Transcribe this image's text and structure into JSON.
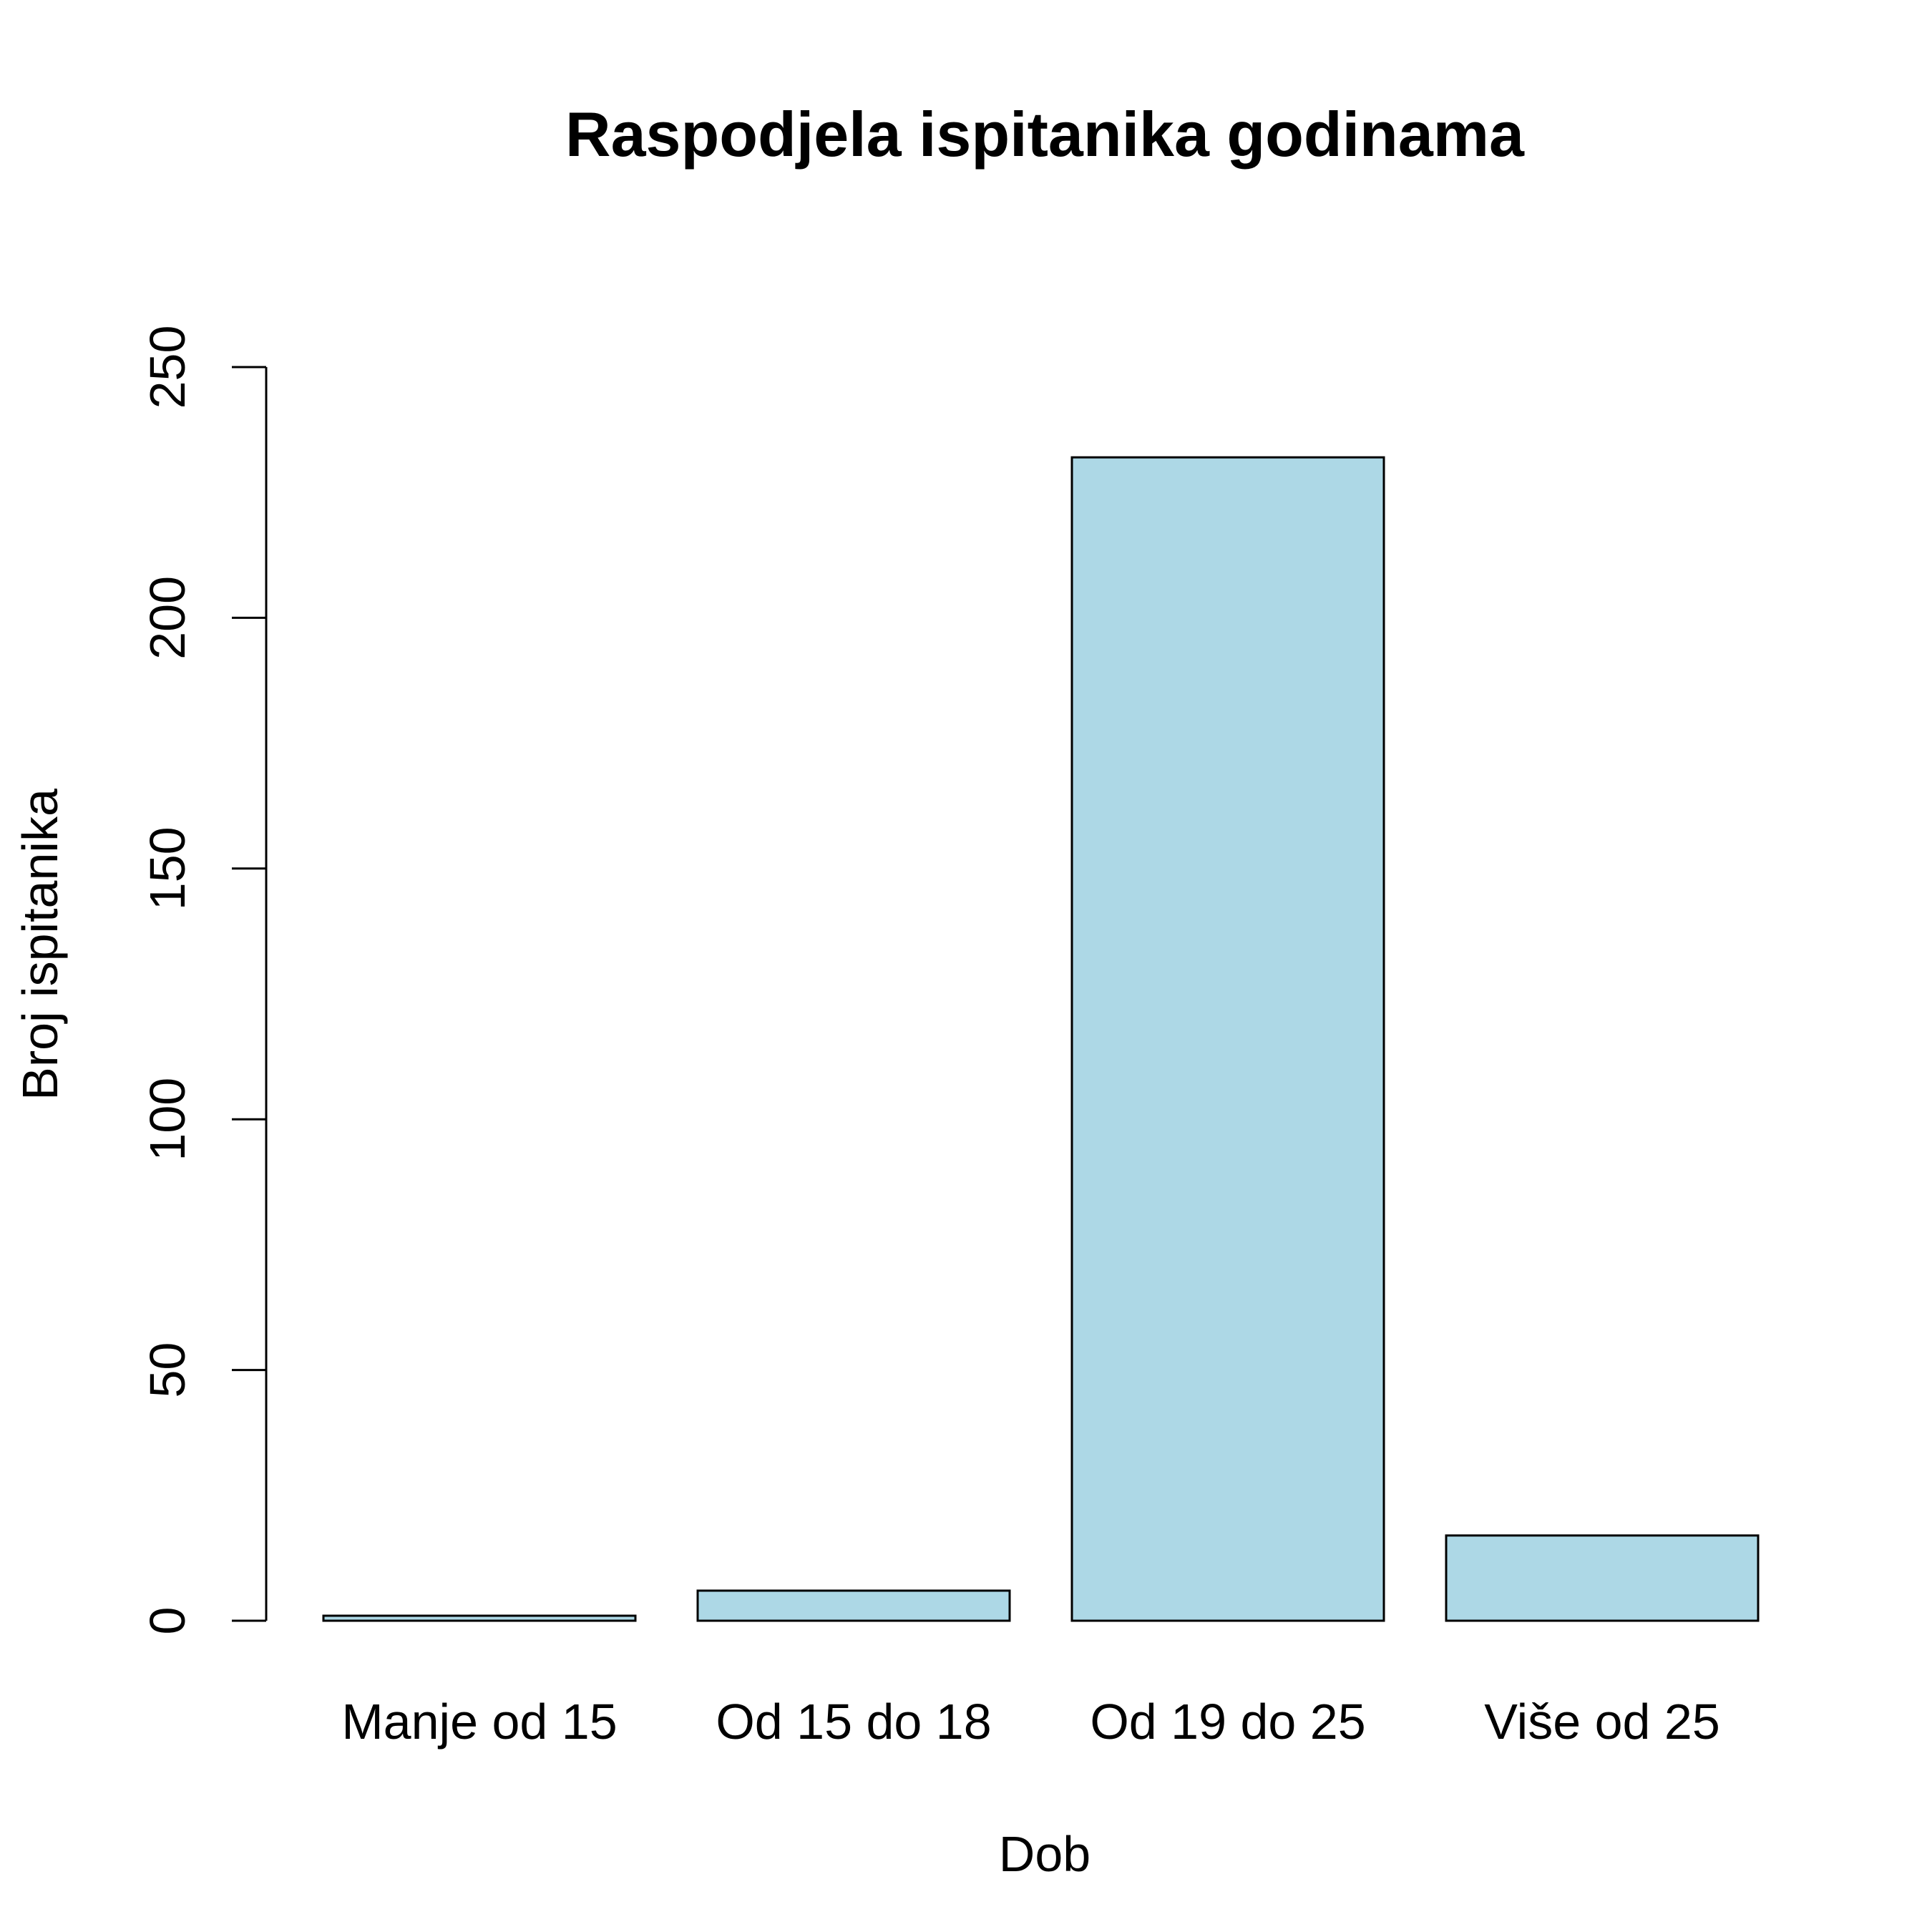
{
  "chart_data": {
    "type": "bar",
    "title": "Raspodjela ispitanika godinama",
    "xlabel": "Dob",
    "ylabel": "Broj ispitanika",
    "categories": [
      "Manje od 15",
      "Od 15 do 18",
      "Od 19 do 25",
      "Više od 25"
    ],
    "values": [
      1,
      6,
      232,
      17
    ],
    "ylim": [
      0,
      250
    ],
    "yticks": [
      0,
      50,
      100,
      150,
      200,
      250
    ],
    "grid": false,
    "bar_color": "#add8e6",
    "border_color": "#000000"
  }
}
